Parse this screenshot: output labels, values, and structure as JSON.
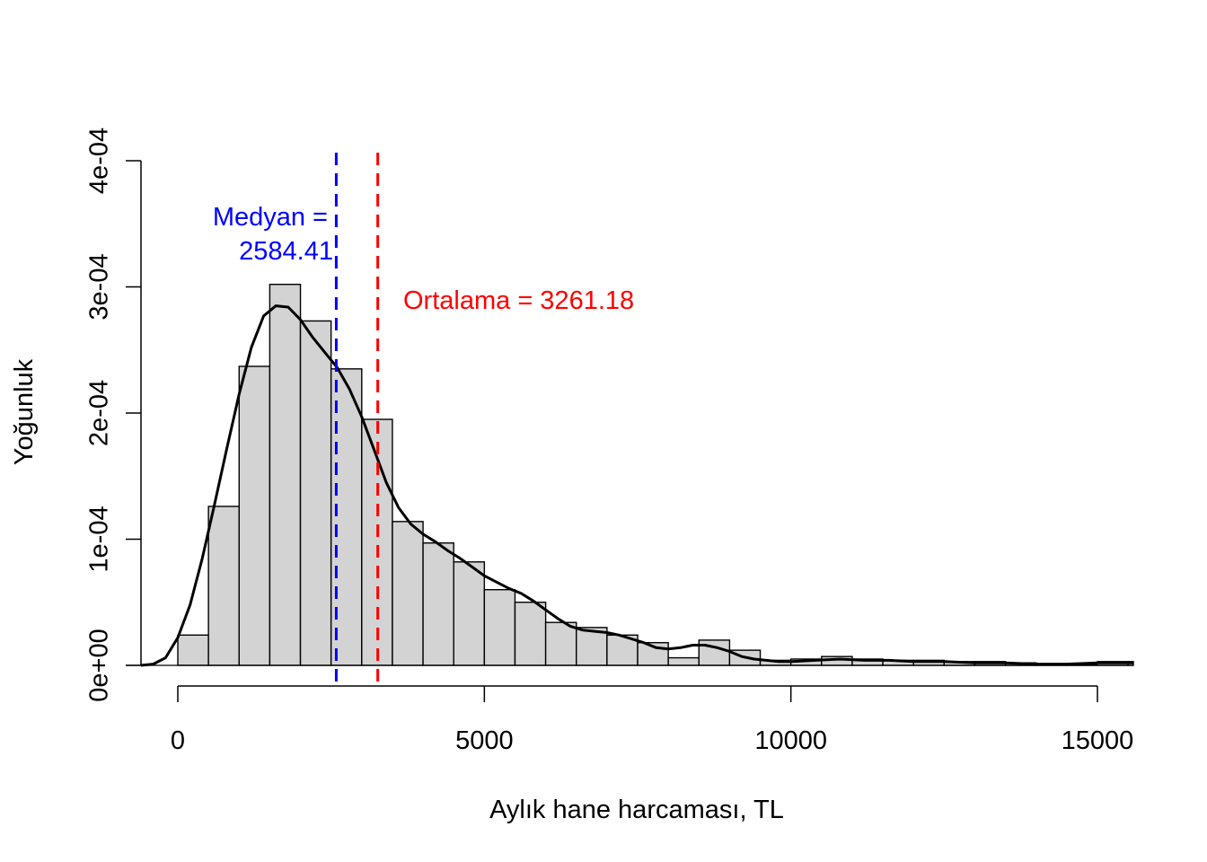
{
  "chart_data": {
    "type": "bar",
    "title": "",
    "xlabel": "Aylık hane harcaması, TL",
    "ylabel": "Yoğunluk",
    "xlim": [
      -600,
      15600
    ],
    "ylim": [
      0,
      0.0004
    ],
    "x_ticks": [
      0,
      5000,
      10000,
      15000
    ],
    "x_tick_labels": [
      "0",
      "5000",
      "10000",
      "15000"
    ],
    "y_ticks": [
      0,
      0.0001,
      0.0002,
      0.0003,
      0.0004
    ],
    "y_tick_labels": [
      "0e+00",
      "1e-04",
      "2e-04",
      "3e-04",
      "4e-04"
    ],
    "bin_width": 500,
    "bin_starts": [
      0,
      500,
      1000,
      1500,
      2000,
      2500,
      3000,
      3500,
      4000,
      4500,
      5000,
      5500,
      6000,
      6500,
      7000,
      7500,
      8000,
      8500,
      9000,
      9500,
      10000,
      10500,
      11000,
      11500,
      12000,
      12500,
      13000,
      13500,
      14000,
      14500,
      15000,
      15500
    ],
    "densities": [
      2.4e-05,
      0.000126,
      0.000237,
      0.000302,
      0.000273,
      0.000235,
      0.000195,
      0.000114,
      9.7e-05,
      8.2e-05,
      6e-05,
      5e-05,
      3.4e-05,
      3e-05,
      2.4e-05,
      1.8e-05,
      6e-06,
      2e-05,
      1.2e-05,
      4e-06,
      5e-06,
      7e-06,
      5e-06,
      4e-06,
      4e-06,
      3e-06,
      3e-06,
      2e-06,
      1e-06,
      1e-06,
      3e-06,
      3e-06
    ],
    "density_curve": {
      "x": [
        -600,
        -400,
        -200,
        0,
        200,
        400,
        600,
        800,
        1000,
        1200,
        1400,
        1600,
        1800,
        2000,
        2200,
        2400,
        2600,
        2800,
        3000,
        3200,
        3400,
        3600,
        3800,
        4000,
        4200,
        4400,
        4600,
        4800,
        5000,
        5200,
        5400,
        5600,
        5800,
        6000,
        6200,
        6400,
        6600,
        6800,
        7000,
        7200,
        7400,
        7600,
        7800,
        8000,
        8200,
        8400,
        8600,
        8800,
        9000,
        9200,
        9400,
        9600,
        9800,
        10000,
        10400,
        10800,
        11200,
        11600,
        12000,
        12500,
        13000,
        13500,
        14000,
        14500,
        15000,
        15600
      ],
      "y": [
        0.0,
        1e-06,
        6e-06,
        2.2e-05,
        4.8e-05,
        8.5e-05,
        0.000128,
        0.000172,
        0.000215,
        0.000252,
        0.000277,
        0.000285,
        0.000284,
        0.000274,
        0.00026,
        0.000248,
        0.000236,
        0.000219,
        0.000197,
        0.000171,
        0.000145,
        0.000125,
        0.000112,
        0.000104,
        9.8e-05,
        9.1e-05,
        8.5e-05,
        7.8e-05,
        7.1e-05,
        6.6e-05,
        6.1e-05,
        5.7e-05,
        5.1e-05,
        4.4e-05,
        3.7e-05,
        3.1e-05,
        2.8e-05,
        2.7e-05,
        2.6e-05,
        2.4e-05,
        2.1e-05,
        1.8e-05,
        1.4e-05,
        1.3e-05,
        1.4e-05,
        1.6e-05,
        1.6e-05,
        1.4e-05,
        1.1e-05,
        7e-06,
        5e-06,
        4e-06,
        3e-06,
        3e-06,
        4e-06,
        5e-06,
        4e-06,
        4e-06,
        3e-06,
        3e-06,
        2e-06,
        2e-06,
        1e-06,
        1e-06,
        2e-06,
        2e-06
      ]
    },
    "reference_lines": [
      {
        "name": "median",
        "value": 2584.41,
        "color": "#0000ff",
        "label_line1": "Medyan =",
        "label_line2": "2584.41"
      },
      {
        "name": "mean",
        "value": 3261.18,
        "color": "#ff0000",
        "label": "Ortalama = 3261.18"
      }
    ],
    "colors": {
      "bar_fill": "#d3d3d3",
      "bar_stroke": "#000000",
      "curve": "#000000"
    }
  }
}
